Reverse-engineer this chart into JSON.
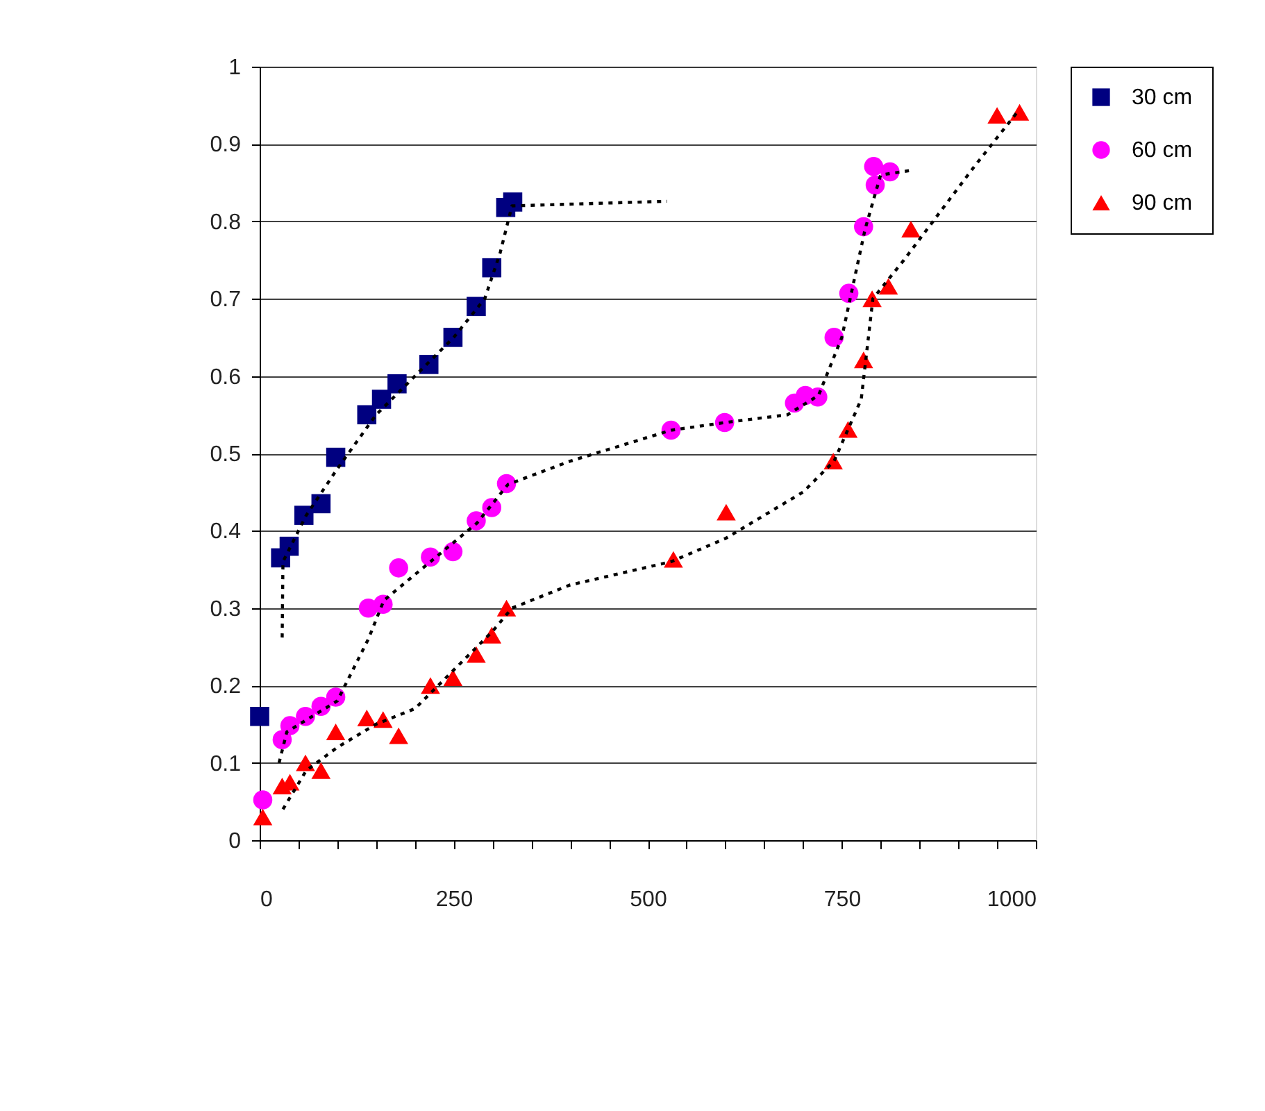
{
  "chart_data": {
    "type": "scatter",
    "xlim": [
      0,
      1000
    ],
    "ylim": [
      0,
      1
    ],
    "xticks": [
      0,
      {
        "value": 50,
        "label": null
      },
      {
        "value": 100,
        "label": null
      },
      {
        "value": 150,
        "label": null
      },
      {
        "value": 200,
        "label": null
      },
      250,
      {
        "value": 300,
        "label": null
      },
      {
        "value": 350,
        "label": null
      },
      {
        "value": 400,
        "label": null
      },
      {
        "value": 450,
        "label": null
      },
      500,
      {
        "value": 550,
        "label": null
      },
      {
        "value": 600,
        "label": null
      },
      {
        "value": 650,
        "label": null
      },
      {
        "value": 700,
        "label": null
      },
      750,
      {
        "value": 800,
        "label": null
      },
      {
        "value": 850,
        "label": null
      },
      {
        "value": 900,
        "label": null
      },
      {
        "value": 950,
        "label": null
      },
      1000
    ],
    "yticks": [
      0,
      0.1,
      0.2,
      0.3,
      0.4,
      0.5,
      0.6,
      0.7,
      0.8,
      0.9,
      1
    ],
    "grid": "y",
    "legend": "right",
    "series": [
      {
        "name": "30 cm",
        "color": "#000080",
        "marker": "square",
        "x": [
          0,
          27,
          38,
          57,
          79,
          98,
          138,
          157,
          177,
          218,
          249,
          279,
          299,
          317,
          326
        ],
        "values": [
          0.16,
          0.365,
          0.38,
          0.42,
          0.435,
          0.495,
          0.55,
          0.57,
          0.59,
          0.615,
          0.65,
          0.69,
          0.74,
          0.818,
          0.825
        ]
      },
      {
        "name": "60 cm",
        "color": "#ff00ff",
        "marker": "circle",
        "x": [
          4,
          29,
          39,
          59,
          79,
          98,
          140,
          159,
          179,
          220,
          249,
          279,
          299,
          318,
          530,
          599,
          689,
          703,
          719,
          740,
          759,
          778,
          793,
          791,
          812
        ],
        "values": [
          0.052,
          0.13,
          0.148,
          0.16,
          0.173,
          0.185,
          0.3,
          0.305,
          0.352,
          0.366,
          0.373,
          0.413,
          0.43,
          0.461,
          0.53,
          0.54,
          0.565,
          0.575,
          0.573,
          0.65,
          0.707,
          0.793,
          0.847,
          0.871,
          0.864
        ]
      },
      {
        "name": "90 cm",
        "color": "#ff0000",
        "marker": "triangle",
        "x": [
          4,
          29,
          39,
          59,
          79,
          98,
          138,
          159,
          179,
          220,
          249,
          279,
          299,
          318,
          533,
          601,
          739,
          758,
          778,
          789,
          810,
          839,
          950,
          979
        ],
        "values": [
          0.03,
          0.07,
          0.075,
          0.1,
          0.09,
          0.14,
          0.158,
          0.156,
          0.135,
          0.2,
          0.21,
          0.24,
          0.265,
          0.3,
          0.363,
          0.424,
          0.49,
          0.531,
          0.621,
          0.7,
          0.716,
          0.79,
          0.937,
          0.941
        ]
      },
      {
        "type": "line",
        "color": "#000000",
        "line_style": "dotted",
        "marker": "none",
        "x": [
          29,
          30,
          60,
          100,
          150,
          200,
          250,
          290,
          310,
          325,
          525
        ],
        "values": [
          0.262,
          0.36,
          0.42,
          0.48,
          0.55,
          0.6,
          0.65,
          0.7,
          0.76,
          0.82,
          0.826
        ]
      },
      {
        "type": "line",
        "color": "#000000",
        "line_style": "dotted",
        "marker": "none",
        "x": [
          25,
          35,
          100,
          140,
          160,
          220,
          280,
          320,
          400,
          530,
          600,
          680,
          720,
          750,
          780,
          800,
          840
        ],
        "values": [
          0.1,
          0.14,
          0.18,
          0.26,
          0.31,
          0.36,
          0.41,
          0.46,
          0.49,
          0.53,
          0.54,
          0.55,
          0.575,
          0.65,
          0.79,
          0.86,
          0.866
        ]
      },
      {
        "type": "line",
        "color": "#000000",
        "line_style": "dotted",
        "marker": "none",
        "x": [
          30,
          60,
          100,
          150,
          200,
          250,
          300,
          325,
          400,
          530,
          600,
          700,
          740,
          775,
          790,
          830,
          920,
          975
        ],
        "values": [
          0.04,
          0.09,
          0.12,
          0.15,
          0.17,
          0.22,
          0.27,
          0.3,
          0.33,
          0.36,
          0.39,
          0.45,
          0.49,
          0.57,
          0.7,
          0.75,
          0.87,
          0.94
        ]
      }
    ]
  }
}
